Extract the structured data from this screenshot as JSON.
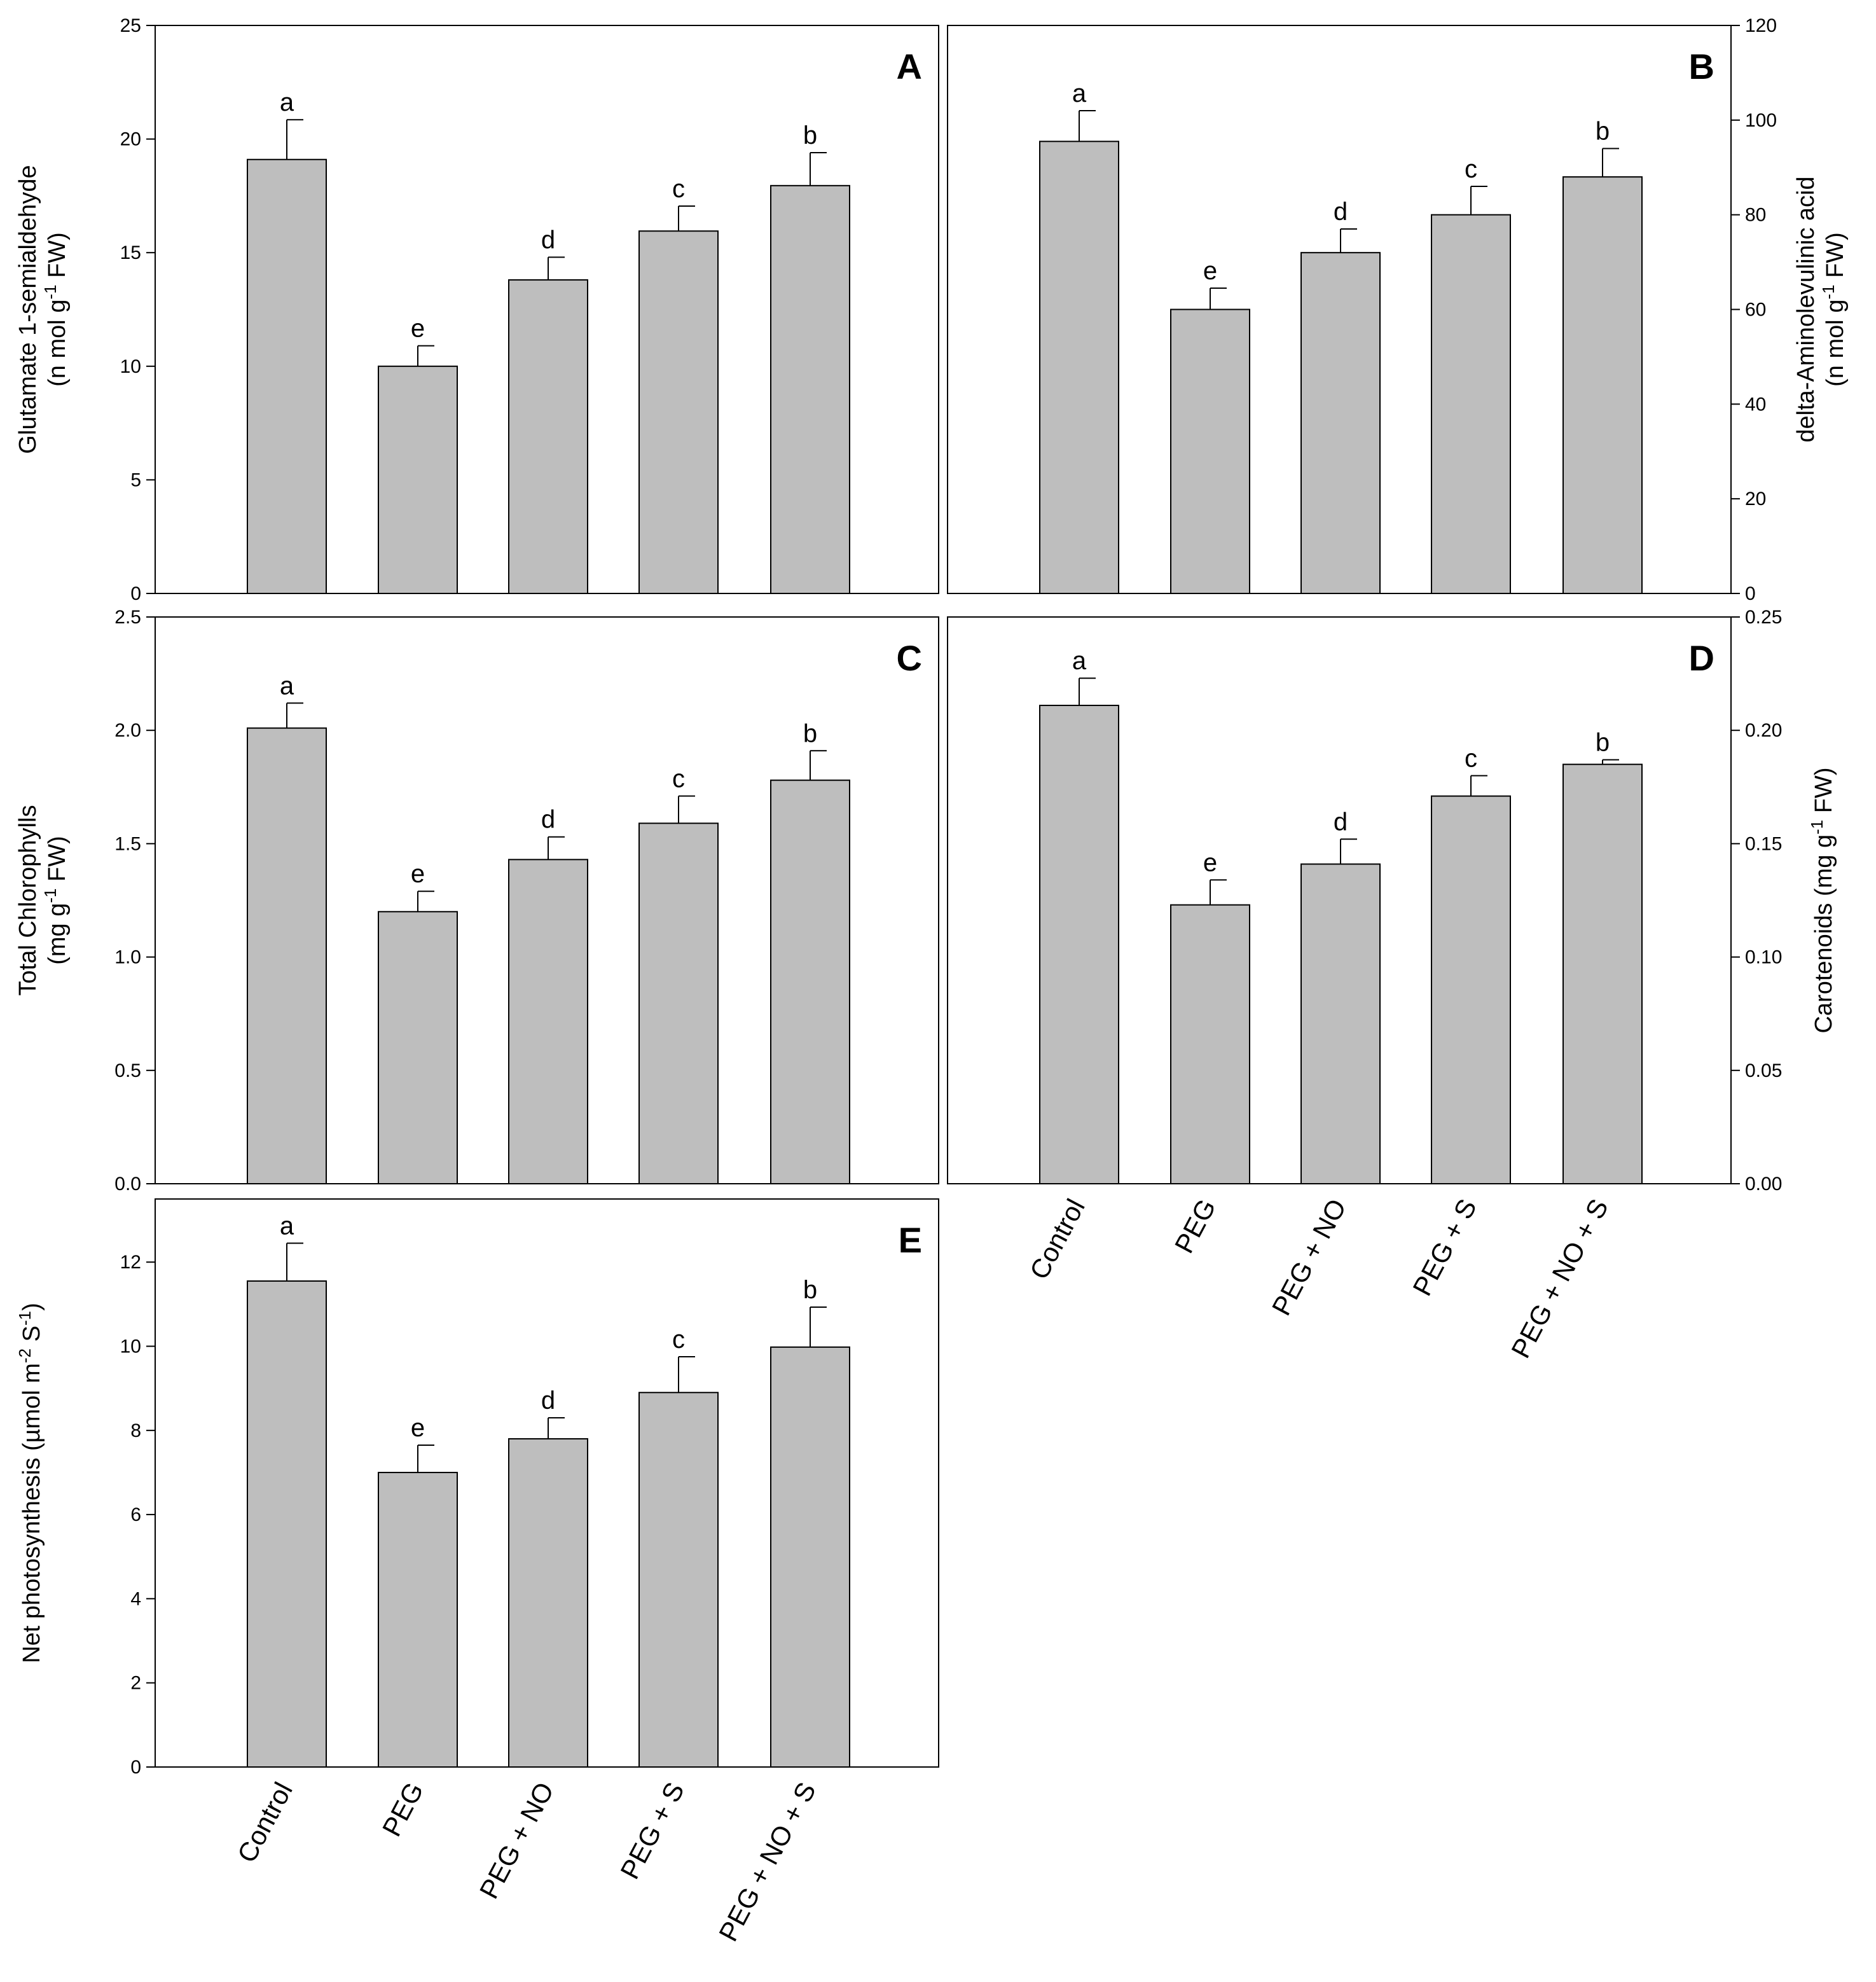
{
  "categories": [
    "Control",
    "PEG",
    "PEG + NO",
    "PEG + S",
    "PEG + NO + S"
  ],
  "bar_color": "#bebebe",
  "chart_data": [
    {
      "type": "bar",
      "panel": "A",
      "ylabel_lines": [
        {
          "text": "Glutamate 1-semialdehyde"
        },
        {
          "text": "(n mol g",
          "sup": "-1",
          "tail": " FW)"
        }
      ],
      "yaxis_side": "left",
      "ylim": [
        0,
        25
      ],
      "yticks": [
        0,
        5,
        10,
        15,
        20,
        25
      ],
      "ytick_labels": [
        "0",
        "5",
        "10",
        "15",
        "20",
        "25"
      ],
      "values": [
        19.1,
        10.0,
        13.8,
        15.95,
        17.95
      ],
      "errors": [
        1.75,
        0.9,
        1.0,
        1.1,
        1.45
      ],
      "significance": [
        "a",
        "e",
        "d",
        "c",
        "b"
      ]
    },
    {
      "type": "bar",
      "panel": "B",
      "ylabel_lines": [
        {
          "text": "delta-Aminolevulinic acid"
        },
        {
          "text": "(n mol g",
          "sup": "-1",
          "tail": " FW)"
        }
      ],
      "yaxis_side": "right",
      "ylim": [
        0,
        120
      ],
      "yticks": [
        0,
        20,
        40,
        60,
        80,
        100,
        120
      ],
      "ytick_labels": [
        "0",
        "20",
        "40",
        "60",
        "80",
        "100",
        "120"
      ],
      "values": [
        95.5,
        60.0,
        72.0,
        80.0,
        88.0
      ],
      "errors": [
        6.5,
        4.5,
        5.0,
        6.0,
        6.0
      ],
      "significance": [
        "a",
        "e",
        "d",
        "c",
        "b"
      ]
    },
    {
      "type": "bar",
      "panel": "C",
      "ylabel_lines": [
        {
          "text": "Total Chlorophylls"
        },
        {
          "text": "(mg g",
          "sup": "-1",
          "tail": " FW)"
        }
      ],
      "yaxis_side": "left",
      "ylim": [
        0,
        2.5
      ],
      "yticks": [
        0,
        0.5,
        1.0,
        1.5,
        2.0,
        2.5
      ],
      "ytick_labels": [
        "0.0",
        "0.5",
        "1.0",
        "1.5",
        "2.0",
        "2.5"
      ],
      "values": [
        2.01,
        1.2,
        1.43,
        1.59,
        1.78
      ],
      "errors": [
        0.11,
        0.09,
        0.1,
        0.12,
        0.13
      ],
      "significance": [
        "a",
        "e",
        "d",
        "c",
        "b"
      ]
    },
    {
      "type": "bar",
      "panel": "D",
      "ylabel_lines": [
        {
          "text": "Carotenoids  (mg g",
          "sup": "-1",
          "tail": " FW)"
        }
      ],
      "yaxis_side": "right",
      "ylim": [
        0,
        0.25
      ],
      "yticks": [
        0,
        0.05,
        0.1,
        0.15,
        0.2,
        0.25
      ],
      "ytick_labels": [
        "0.00",
        "0.05",
        "0.10",
        "0.15",
        "0.20",
        "0.25"
      ],
      "values": [
        0.211,
        0.123,
        0.141,
        0.171,
        0.185
      ],
      "errors": [
        0.012,
        0.011,
        0.011,
        0.009,
        0.002
      ],
      "significance": [
        "a",
        "e",
        "d",
        "c",
        "b"
      ]
    },
    {
      "type": "bar",
      "panel": "E",
      "ylabel_lines": [
        {
          "text": "Net photosynthesis (µmol m",
          "sup": "-2",
          "mid": " S",
          "sup2": "-1",
          "tail": ")"
        }
      ],
      "yaxis_side": "left",
      "ylim": [
        0,
        13.5
      ],
      "yticks": [
        0,
        2,
        4,
        6,
        8,
        10,
        12
      ],
      "ytick_labels": [
        "0",
        "2",
        "4",
        "6",
        "8",
        "10",
        "12"
      ],
      "values": [
        11.55,
        7.0,
        7.8,
        8.9,
        9.98
      ],
      "errors": [
        0.9,
        0.65,
        0.5,
        0.85,
        0.95
      ],
      "significance": [
        "a",
        "e",
        "d",
        "c",
        "b"
      ]
    }
  ]
}
